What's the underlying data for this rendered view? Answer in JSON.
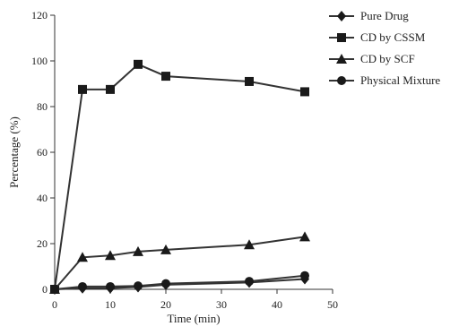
{
  "chart_data": {
    "type": "line",
    "title": "",
    "xlabel": "Time (min)",
    "ylabel": "Percentage (%)",
    "xlim": [
      0,
      50
    ],
    "ylim": [
      0,
      120
    ],
    "xticks": [
      0,
      10,
      20,
      30,
      40,
      50
    ],
    "yticks": [
      0,
      20,
      40,
      60,
      80,
      100,
      120
    ],
    "grid": false,
    "legend_position": "top-right",
    "x": [
      0,
      5,
      10,
      15,
      20,
      35,
      45
    ],
    "series": [
      {
        "name": "Pure Drug",
        "marker": "diamond",
        "values": [
          0,
          0.5,
          0.5,
          1,
          2,
          3,
          4.5
        ]
      },
      {
        "name": "CD by CSSM",
        "marker": "square",
        "values": [
          0,
          87.5,
          87.5,
          98.5,
          93.3,
          91,
          86.5
        ]
      },
      {
        "name": "CD by SCF",
        "marker": "triangle",
        "values": [
          0,
          14,
          14.8,
          16.5,
          17.3,
          19.5,
          23
        ]
      },
      {
        "name": "Physical Mixture",
        "marker": "circle",
        "values": [
          0,
          1.2,
          1.2,
          1.5,
          2.5,
          3.5,
          6
        ]
      }
    ],
    "colors": {
      "line": "#333333",
      "marker": "#1a1a1a",
      "axis": "#333333"
    }
  }
}
